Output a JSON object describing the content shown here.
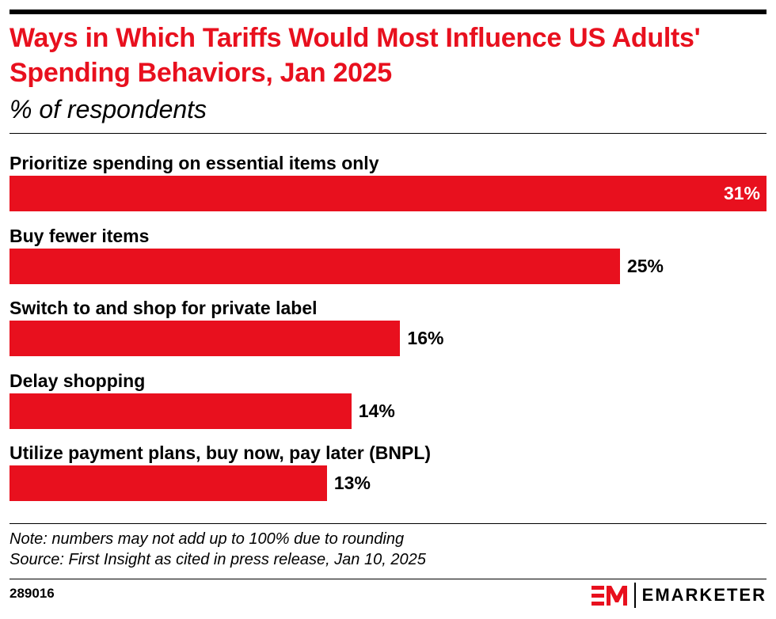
{
  "title": "Ways in Which Tariffs Would Most Influence US Adults' Spending Behaviors, Jan 2025",
  "subtitle": "% of respondents",
  "chart_data": {
    "type": "bar",
    "orientation": "horizontal",
    "categories": [
      "Prioritize spending on essential items only",
      "Buy fewer items",
      "Switch to and shop for private label",
      "Delay shopping",
      "Utilize payment plans, buy now, pay later (BNPL)"
    ],
    "values": [
      31,
      25,
      16,
      14,
      13
    ],
    "value_labels": [
      "31%",
      "25%",
      "16%",
      "14%",
      "13%"
    ],
    "unit": "%",
    "xlim": [
      0,
      31
    ],
    "grid": false,
    "color": "#e8101e"
  },
  "notes": [
    "Note: numbers may not add up to 100% due to rounding",
    "Source: First Insight as cited in press release, Jan 10, 2025"
  ],
  "chart_id": "289016",
  "logo": {
    "text": "EMARKETER",
    "mark": "EM",
    "color": "#e8101e"
  }
}
